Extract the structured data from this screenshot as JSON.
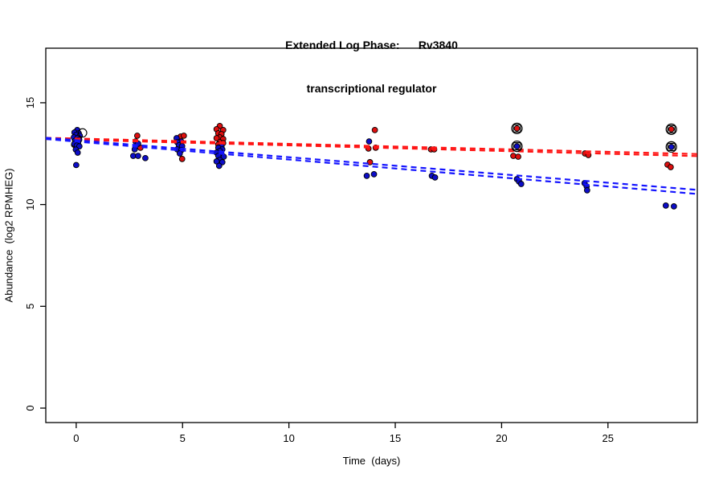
{
  "figure": {
    "title_line1": "Extended Log Phase:      Rv3840",
    "title_line2": "transcriptional regulator",
    "xlabel": "Time  (days)",
    "ylabel": "Abundance  (log2 RPMHEG)"
  },
  "chart_data": {
    "type": "scatter",
    "title": "Extended Log Phase: Rv3840 transcriptional regulator",
    "xlabel": "Time (days)",
    "ylabel": "Abundance (log2 RPMHEG)",
    "xlim": [
      -1.43,
      29.2
    ],
    "ylim": [
      -0.71,
      17.68
    ],
    "x_ticks": [
      0,
      5,
      10,
      15,
      20,
      25
    ],
    "y_ticks": [
      0,
      5,
      10,
      15
    ],
    "grid": false,
    "legend": null,
    "point_border_color": "#000000",
    "series": [
      {
        "name": "condition-red",
        "color": "#df0f0f",
        "points": [
          [
            0.02,
            13.46
          ],
          [
            0.13,
            13.3
          ],
          [
            -0.06,
            13.18
          ],
          [
            0.08,
            13.02
          ],
          [
            -0.1,
            12.94
          ],
          [
            2.87,
            13.38
          ],
          [
            3.02,
            12.79
          ],
          [
            4.91,
            13.34
          ],
          [
            5.06,
            13.38
          ],
          [
            4.98,
            12.24
          ],
          [
            6.75,
            13.86
          ],
          [
            6.6,
            13.7
          ],
          [
            6.91,
            13.66
          ],
          [
            6.68,
            13.5
          ],
          [
            6.83,
            13.46
          ],
          [
            6.75,
            13.3
          ],
          [
            6.6,
            13.26
          ],
          [
            6.91,
            13.22
          ],
          [
            6.75,
            13.06
          ],
          [
            6.91,
            13.02
          ],
          [
            6.68,
            12.95
          ],
          [
            14.04,
            13.66
          ],
          [
            13.74,
            12.75
          ],
          [
            14.08,
            12.79
          ],
          [
            13.81,
            12.08
          ],
          [
            16.68,
            12.71
          ],
          [
            16.83,
            12.71
          ],
          [
            20.55,
            12.39
          ],
          [
            20.78,
            12.35
          ],
          [
            23.92,
            12.51
          ],
          [
            24.08,
            12.43
          ],
          [
            27.8,
            11.96
          ],
          [
            27.95,
            11.84
          ]
        ]
      },
      {
        "name": "condition-blue",
        "color": "#0d0dc8",
        "points": [
          [
            0.05,
            13.66
          ],
          [
            -0.08,
            13.54
          ],
          [
            0.12,
            13.5
          ],
          [
            0.0,
            13.42
          ],
          [
            0.17,
            13.38
          ],
          [
            -0.11,
            13.3
          ],
          [
            0.06,
            13.26
          ],
          [
            0.14,
            13.18
          ],
          [
            -0.04,
            13.14
          ],
          [
            0.09,
            13.06
          ],
          [
            -0.09,
            12.98
          ],
          [
            0.03,
            12.9
          ],
          [
            0.15,
            12.86
          ],
          [
            -0.02,
            12.7
          ],
          [
            0.07,
            12.55
          ],
          [
            0.0,
            11.94
          ],
          [
            2.79,
            13.1
          ],
          [
            2.91,
            12.99
          ],
          [
            2.75,
            12.71
          ],
          [
            2.68,
            12.39
          ],
          [
            2.91,
            12.39
          ],
          [
            3.25,
            12.28
          ],
          [
            4.72,
            13.26
          ],
          [
            4.94,
            13.1
          ],
          [
            4.75,
            13.06
          ],
          [
            4.83,
            12.91
          ],
          [
            4.98,
            12.87
          ],
          [
            4.75,
            12.71
          ],
          [
            4.94,
            12.67
          ],
          [
            4.87,
            12.51
          ],
          [
            6.83,
            12.87
          ],
          [
            6.68,
            12.79
          ],
          [
            6.87,
            12.71
          ],
          [
            6.75,
            12.63
          ],
          [
            6.6,
            12.55
          ],
          [
            6.83,
            12.47
          ],
          [
            6.68,
            12.39
          ],
          [
            6.94,
            12.35
          ],
          [
            6.75,
            12.19
          ],
          [
            6.6,
            12.12
          ],
          [
            6.87,
            12.08
          ],
          [
            6.72,
            11.9
          ],
          [
            13.77,
            13.1
          ],
          [
            13.66,
            11.41
          ],
          [
            14.0,
            11.49
          ],
          [
            16.72,
            11.41
          ],
          [
            16.87,
            11.33
          ],
          [
            20.72,
            11.25
          ],
          [
            20.82,
            11.13
          ],
          [
            20.92,
            11.01
          ],
          [
            23.9,
            11.05
          ],
          [
            24.0,
            10.89
          ],
          [
            24.02,
            10.7
          ],
          [
            27.72,
            9.95
          ],
          [
            28.1,
            9.91
          ]
        ]
      }
    ],
    "trend_lines": [
      {
        "series": "condition-red",
        "color": "#ff1414",
        "x": [
          -1.43,
          29.2
        ],
        "y": [
          13.28,
          12.48
        ]
      },
      {
        "series": "condition-red",
        "color": "#ff1414",
        "x": [
          -1.43,
          29.2
        ],
        "y": [
          13.22,
          12.38
        ]
      },
      {
        "series": "condition-blue",
        "color": "#1414ff",
        "x": [
          -1.43,
          29.2
        ],
        "y": [
          13.28,
          10.72
        ]
      },
      {
        "series": "condition-blue",
        "color": "#1414ff",
        "x": [
          -1.43,
          29.2
        ],
        "y": [
          13.22,
          10.52
        ]
      }
    ],
    "highlighted_points": [
      {
        "series": 0,
        "x": 20.72,
        "y": 13.74
      },
      {
        "series": 1,
        "x": 20.72,
        "y": 12.86
      },
      {
        "series": 0,
        "x": 27.98,
        "y": 13.7
      },
      {
        "series": 1,
        "x": 27.98,
        "y": 12.83
      }
    ],
    "open_circle_points": [
      [
        0.3,
        13.52
      ]
    ]
  }
}
